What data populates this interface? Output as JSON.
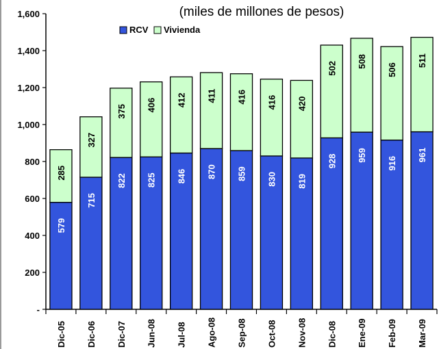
{
  "chart_data": {
    "type": "bar",
    "stacked": true,
    "title": "(miles de millones de pesos)",
    "xlabel": "",
    "ylabel": "",
    "categories": [
      "Dic-05",
      "Dic-06",
      "Dic-07",
      "Jun-08",
      "Jul-08",
      "Ago-08",
      "Sep-08",
      "Oct-08",
      "Nov-08",
      "Dic-08",
      "Ene-09",
      "Feb-09",
      "Mar-09"
    ],
    "series": [
      {
        "name": "RCV",
        "color": "#3355dd",
        "values": [
          579,
          715,
          822,
          825,
          846,
          870,
          859,
          830,
          819,
          928,
          959,
          916,
          961
        ]
      },
      {
        "name": "Vivienda",
        "color": "#ccffcc",
        "values": [
          285,
          327,
          375,
          406,
          412,
          411,
          416,
          416,
          420,
          502,
          508,
          506,
          511
        ]
      }
    ],
    "ylim": [
      0,
      1600
    ],
    "yticks": [
      {
        "value": 0,
        "label": "-"
      },
      {
        "value": 200,
        "label": "200"
      },
      {
        "value": 400,
        "label": "400"
      },
      {
        "value": 600,
        "label": "600"
      },
      {
        "value": 800,
        "label": "800"
      },
      {
        "value": 1000,
        "label": "1,000"
      },
      {
        "value": 1200,
        "label": "1,200"
      },
      {
        "value": 1400,
        "label": "1,400"
      },
      {
        "value": 1600,
        "label": "1,600"
      }
    ],
    "grid": false,
    "legend_position": "top-left"
  }
}
